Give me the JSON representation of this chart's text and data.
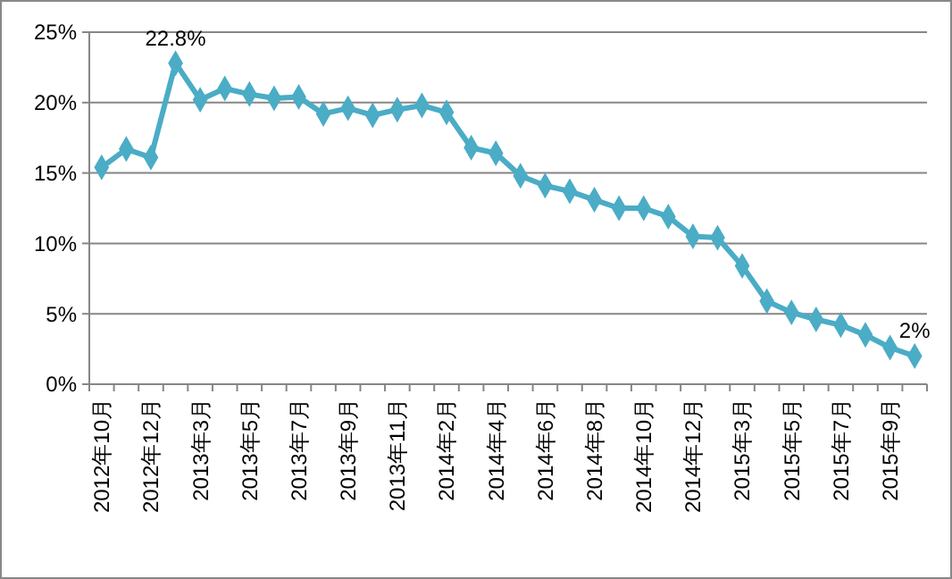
{
  "chart_data": {
    "type": "line",
    "categories": [
      "2012年10月",
      null,
      "2012年12月",
      null,
      "2013年3月",
      null,
      "2013年5月",
      null,
      "2013年7月",
      null,
      "2013年9月",
      null,
      "2013年11月",
      null,
      "2014年2月",
      null,
      "2014年4月",
      null,
      "2014年6月",
      null,
      "2014年8月",
      null,
      "2014年10月",
      null,
      "2014年12月",
      null,
      "2015年3月",
      null,
      "2015年5月",
      null,
      "2015年7月",
      null,
      "2015年9月",
      null
    ],
    "series": [
      {
        "color": "#4bacc6",
        "values": [
          15.4,
          16.7,
          16.1,
          22.8,
          20.2,
          21.0,
          20.6,
          20.3,
          20.4,
          19.2,
          19.6,
          19.1,
          19.5,
          19.8,
          19.3,
          16.8,
          16.4,
          14.8,
          14.1,
          13.7,
          13.1,
          12.5,
          12.5,
          11.9,
          10.5,
          10.4,
          8.4,
          5.9,
          5.1,
          4.6,
          4.2,
          3.5,
          2.6,
          2.0
        ],
        "value_labels": [
          null,
          null,
          null,
          "22.8%",
          null,
          null,
          null,
          null,
          null,
          null,
          null,
          null,
          null,
          null,
          null,
          null,
          null,
          null,
          null,
          null,
          null,
          null,
          null,
          null,
          null,
          null,
          null,
          null,
          null,
          null,
          null,
          null,
          null,
          "2%"
        ]
      }
    ],
    "ylim": [
      0,
      25
    ],
    "yticks": [
      {
        "value": 0,
        "label": "0%"
      },
      {
        "value": 5,
        "label": "5%"
      },
      {
        "value": 10,
        "label": "10%"
      },
      {
        "value": 15,
        "label": "15%"
      },
      {
        "value": 20,
        "label": "20%"
      },
      {
        "value": 25,
        "label": "25%"
      }
    ],
    "grid": "y",
    "marker": "diamond",
    "line_style": "solid"
  }
}
